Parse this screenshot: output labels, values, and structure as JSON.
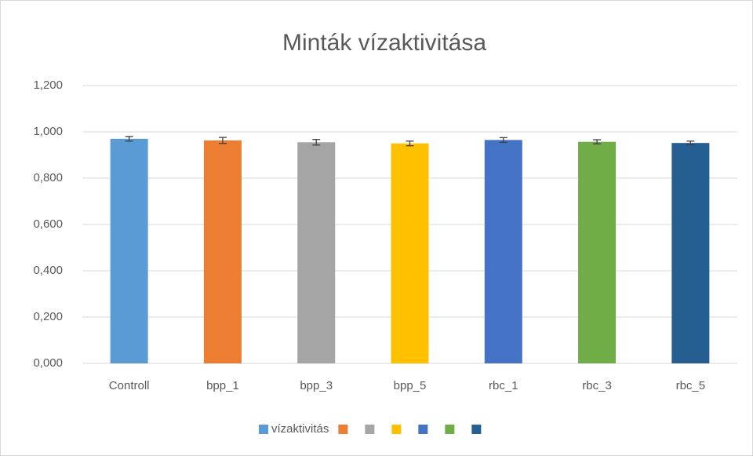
{
  "chart_data": {
    "type": "bar",
    "title": "Minták vízaktivitása",
    "categories": [
      "Controll",
      "bpp_1",
      "bpp_3",
      "bpp_5",
      "rbc_1",
      "rbc_3",
      "rbc_5"
    ],
    "series": [
      {
        "name": "vízaktivitás",
        "colors": [
          "#5b9bd5",
          "#ed7d31",
          "#a5a5a5",
          "#ffc000",
          "#4472c4",
          "#70ad47",
          "#255e91"
        ],
        "values": [
          0.97,
          0.963,
          0.955,
          0.95,
          0.965,
          0.957,
          0.952
        ],
        "errors": [
          0.01,
          0.013,
          0.012,
          0.01,
          0.01,
          0.009,
          0.008
        ]
      }
    ],
    "ylim": [
      0,
      1.2
    ],
    "yticks": [
      {
        "value": 0,
        "label": "0,000"
      },
      {
        "value": 0.2,
        "label": "0,200"
      },
      {
        "value": 0.4,
        "label": "0,400"
      },
      {
        "value": 0.6,
        "label": "0,600"
      },
      {
        "value": 0.8,
        "label": "0,800"
      },
      {
        "value": 1.0,
        "label": "1,000"
      },
      {
        "value": 1.2,
        "label": "1,200"
      }
    ],
    "grid": true,
    "legend": "bottom"
  }
}
